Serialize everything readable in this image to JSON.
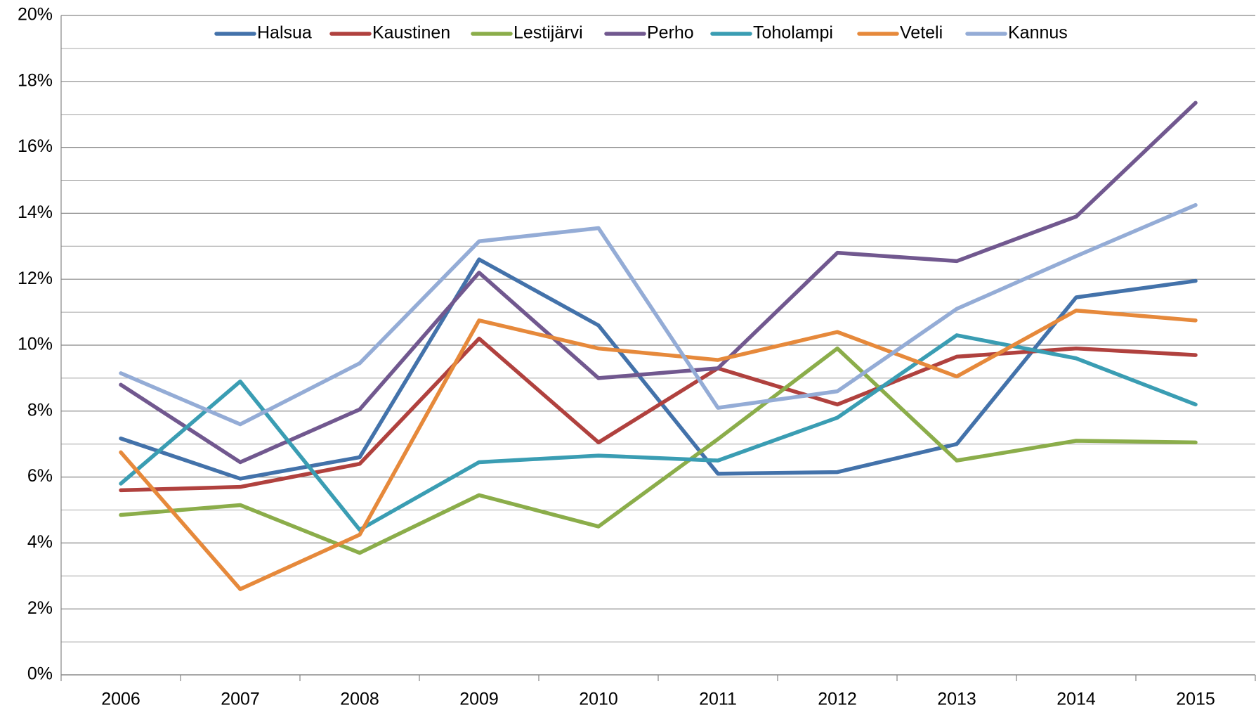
{
  "chart_data": {
    "type": "line",
    "categories": [
      "2006",
      "2007",
      "2008",
      "2009",
      "2010",
      "2011",
      "2012",
      "2013",
      "2014",
      "2015"
    ],
    "series": [
      {
        "name": "Halsua",
        "color": "#4372aa",
        "values": [
          7.17,
          5.95,
          6.6,
          12.6,
          10.6,
          6.1,
          6.15,
          7.0,
          11.45,
          11.95
        ]
      },
      {
        "name": "Kaustinen",
        "color": "#b0413e",
        "values": [
          5.6,
          5.7,
          6.4,
          10.2,
          7.05,
          9.3,
          8.2,
          9.65,
          9.9,
          9.7
        ]
      },
      {
        "name": "Lestijärvi",
        "color": "#8bad4a",
        "values": [
          4.85,
          5.15,
          3.7,
          5.45,
          4.5,
          7.15,
          9.9,
          6.5,
          7.1,
          7.05
        ]
      },
      {
        "name": "Perho",
        "color": "#71588f",
        "values": [
          8.8,
          6.45,
          8.05,
          12.2,
          9.0,
          9.3,
          12.8,
          12.55,
          13.9,
          17.35
        ]
      },
      {
        "name": "Toholampi",
        "color": "#3a9db3",
        "values": [
          5.8,
          8.9,
          4.4,
          6.45,
          6.65,
          6.5,
          7.8,
          10.3,
          9.6,
          8.2
        ]
      },
      {
        "name": "Veteli",
        "color": "#e6893b",
        "values": [
          6.75,
          2.6,
          4.25,
          10.75,
          9.9,
          9.55,
          10.4,
          9.05,
          11.05,
          10.75
        ]
      },
      {
        "name": "Kannus",
        "color": "#94acd6",
        "values": [
          9.15,
          7.6,
          9.45,
          13.15,
          13.55,
          8.1,
          8.6,
          11.1,
          12.7,
          14.25
        ]
      }
    ],
    "ylim": [
      0,
      20
    ],
    "yticks": [
      {
        "value": 0,
        "label": "0%"
      },
      {
        "value": 2,
        "label": "2%"
      },
      {
        "value": 4,
        "label": "4%"
      },
      {
        "value": 6,
        "label": "6%"
      },
      {
        "value": 8,
        "label": "8%"
      },
      {
        "value": 10,
        "label": "10%"
      },
      {
        "value": 12,
        "label": "12%"
      },
      {
        "value": 14,
        "label": "14%"
      },
      {
        "value": 16,
        "label": "16%"
      },
      {
        "value": 18,
        "label": "18%"
      },
      {
        "value": 20,
        "label": "20%"
      }
    ],
    "y_minor_ticks": [
      1,
      3,
      5,
      7,
      9,
      11,
      13,
      15,
      17,
      19
    ],
    "grid": true,
    "legend": "top"
  }
}
